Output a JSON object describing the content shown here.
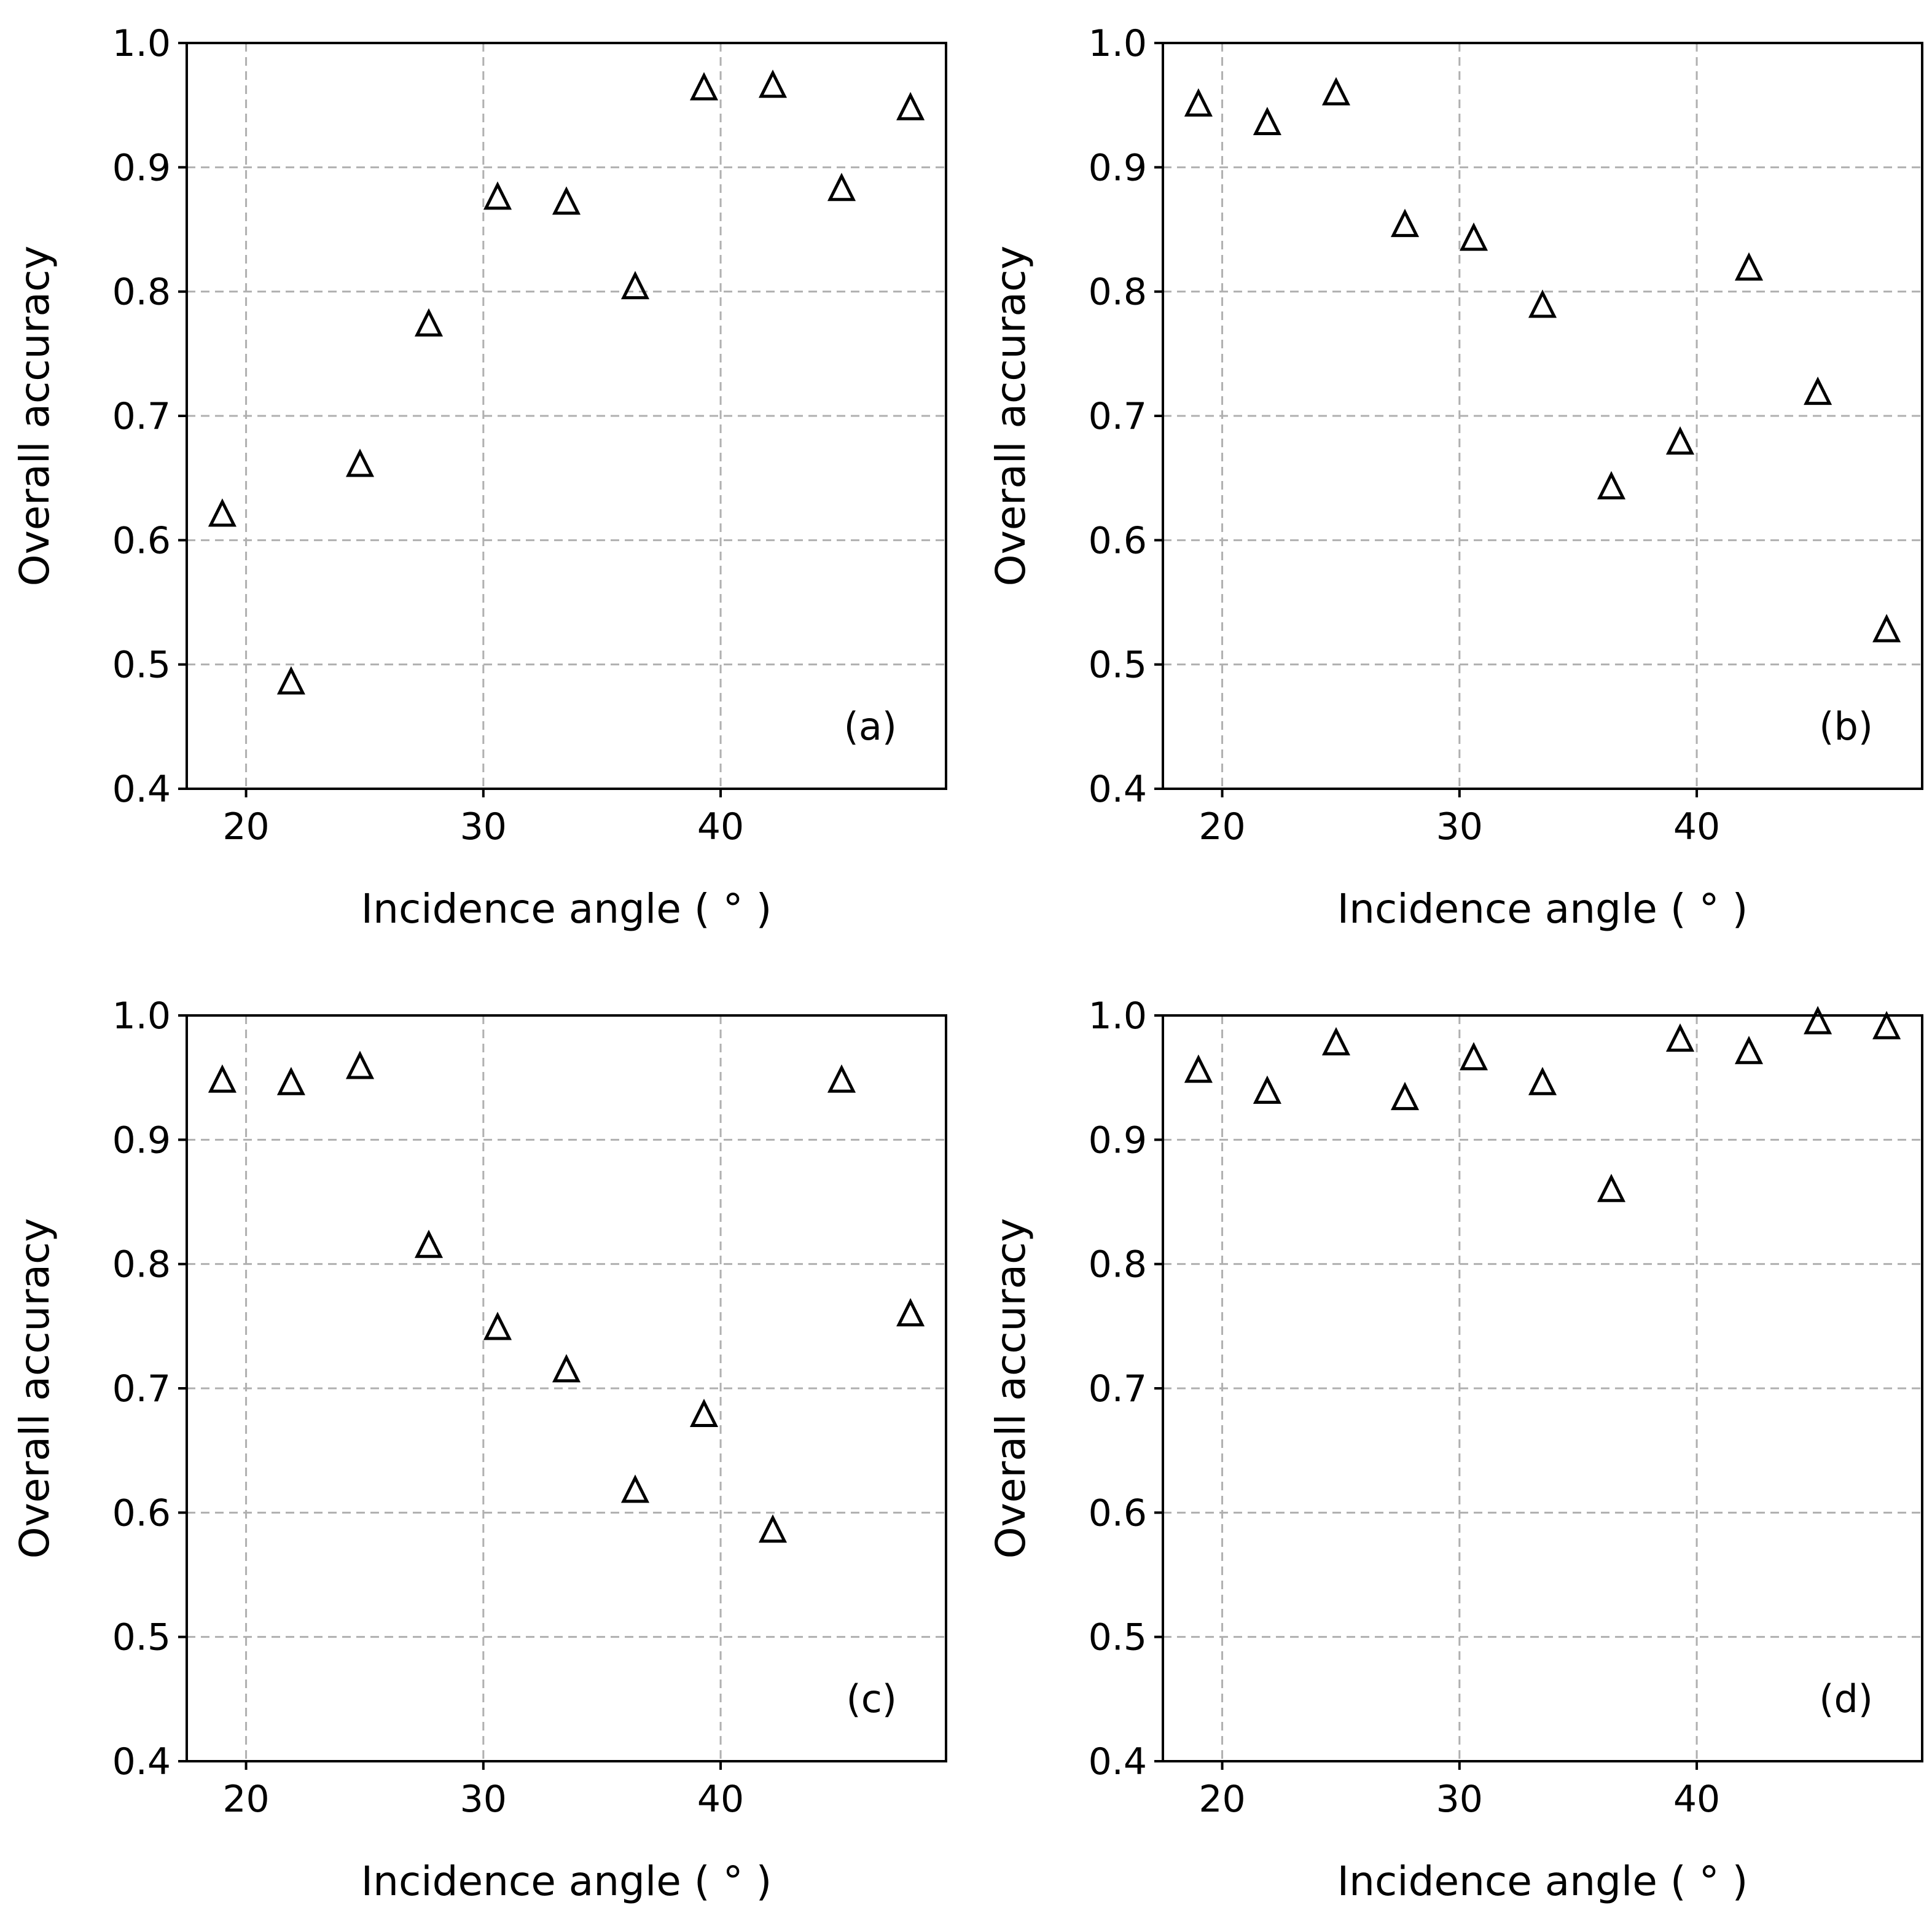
{
  "chart_data": [
    {
      "type": "scatter",
      "panel_label": "(a)",
      "xlabel": "Incidence angle ( ° )",
      "ylabel": "Overall accuracy",
      "xlim": [
        17.5,
        49.5
      ],
      "ylim": [
        0.4,
        1.0
      ],
      "xticks": [
        20,
        30,
        40
      ],
      "yticks": [
        0.4,
        0.5,
        0.6,
        0.7,
        0.8,
        0.9,
        1.0
      ],
      "grid": true,
      "marker": "open-triangle",
      "points": [
        {
          "x": 19.0,
          "y": 0.62
        },
        {
          "x": 21.9,
          "y": 0.485
        },
        {
          "x": 24.8,
          "y": 0.66
        },
        {
          "x": 27.7,
          "y": 0.773
        },
        {
          "x": 30.6,
          "y": 0.875
        },
        {
          "x": 33.5,
          "y": 0.871
        },
        {
          "x": 36.4,
          "y": 0.803
        },
        {
          "x": 39.3,
          "y": 0.963
        },
        {
          "x": 42.2,
          "y": 0.965
        },
        {
          "x": 45.1,
          "y": 0.882
        },
        {
          "x": 48.0,
          "y": 0.947
        }
      ]
    },
    {
      "type": "scatter",
      "panel_label": "(b)",
      "xlabel": "Incidence angle ( ° )",
      "ylabel": "Overall accuracy",
      "xlim": [
        17.5,
        49.5
      ],
      "ylim": [
        0.4,
        1.0
      ],
      "xticks": [
        20,
        30,
        40
      ],
      "yticks": [
        0.4,
        0.5,
        0.6,
        0.7,
        0.8,
        0.9,
        1.0
      ],
      "grid": true,
      "marker": "open-triangle",
      "points": [
        {
          "x": 19.0,
          "y": 0.95
        },
        {
          "x": 21.9,
          "y": 0.935
        },
        {
          "x": 24.8,
          "y": 0.959
        },
        {
          "x": 27.7,
          "y": 0.853
        },
        {
          "x": 30.6,
          "y": 0.842
        },
        {
          "x": 33.5,
          "y": 0.788
        },
        {
          "x": 36.4,
          "y": 0.642
        },
        {
          "x": 39.3,
          "y": 0.678
        },
        {
          "x": 42.2,
          "y": 0.818
        },
        {
          "x": 45.1,
          "y": 0.718
        },
        {
          "x": 48.0,
          "y": 0.527
        }
      ]
    },
    {
      "type": "scatter",
      "panel_label": "(c)",
      "xlabel": "Incidence angle ( ° )",
      "ylabel": "Overall accuracy",
      "xlim": [
        17.5,
        49.5
      ],
      "ylim": [
        0.4,
        1.0
      ],
      "xticks": [
        20,
        30,
        40
      ],
      "yticks": [
        0.4,
        0.5,
        0.6,
        0.7,
        0.8,
        0.9,
        1.0
      ],
      "grid": true,
      "marker": "open-triangle",
      "points": [
        {
          "x": 19.0,
          "y": 0.947
        },
        {
          "x": 21.9,
          "y": 0.945
        },
        {
          "x": 24.8,
          "y": 0.958
        },
        {
          "x": 27.7,
          "y": 0.814
        },
        {
          "x": 30.6,
          "y": 0.748
        },
        {
          "x": 33.5,
          "y": 0.714
        },
        {
          "x": 36.4,
          "y": 0.617
        },
        {
          "x": 39.3,
          "y": 0.678
        },
        {
          "x": 42.2,
          "y": 0.585
        },
        {
          "x": 45.1,
          "y": 0.947
        },
        {
          "x": 48.0,
          "y": 0.759
        }
      ]
    },
    {
      "type": "scatter",
      "panel_label": "(d)",
      "xlabel": "Incidence angle ( ° )",
      "ylabel": "Overall accuracy",
      "xlim": [
        17.5,
        49.5
      ],
      "ylim": [
        0.4,
        1.0
      ],
      "xticks": [
        20,
        30,
        40
      ],
      "yticks": [
        0.4,
        0.5,
        0.6,
        0.7,
        0.8,
        0.9,
        1.0
      ],
      "grid": true,
      "marker": "open-triangle",
      "points": [
        {
          "x": 19.0,
          "y": 0.955
        },
        {
          "x": 21.9,
          "y": 0.938
        },
        {
          "x": 24.8,
          "y": 0.977
        },
        {
          "x": 27.7,
          "y": 0.933
        },
        {
          "x": 30.6,
          "y": 0.965
        },
        {
          "x": 33.5,
          "y": 0.945
        },
        {
          "x": 36.4,
          "y": 0.859
        },
        {
          "x": 39.3,
          "y": 0.98
        },
        {
          "x": 42.2,
          "y": 0.97
        },
        {
          "x": 45.1,
          "y": 0.994
        },
        {
          "x": 48.0,
          "y": 0.99
        }
      ]
    }
  ]
}
